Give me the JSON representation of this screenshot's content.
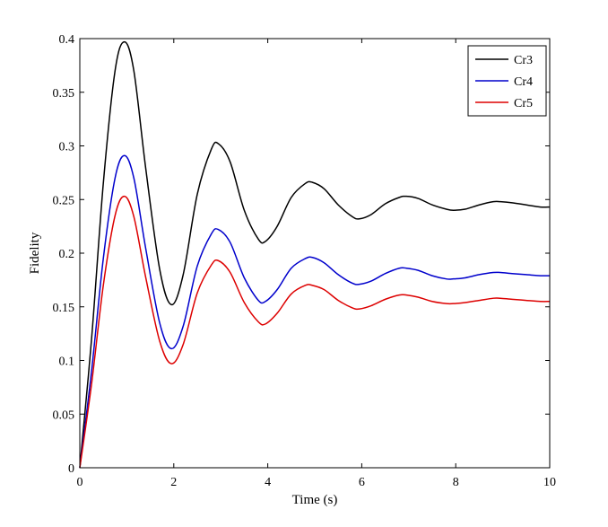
{
  "chart_data": {
    "type": "line",
    "title": "",
    "xlabel": "Time (s)",
    "ylabel": "Fidelity",
    "xlim": [
      0,
      10
    ],
    "ylim": [
      0,
      0.4
    ],
    "xticks": [
      0,
      2,
      4,
      6,
      8,
      10
    ],
    "xtick_labels": [
      "0",
      "2",
      "4",
      "6",
      "8",
      "10"
    ],
    "yticks": [
      0,
      0.05,
      0.1,
      0.15,
      0.2,
      0.25,
      0.3,
      0.35,
      0.4
    ],
    "ytick_labels": [
      "0",
      "0.05",
      "0.1",
      "0.15",
      "0.2",
      "0.25",
      "0.3",
      "0.35",
      "0.4"
    ],
    "grid": false,
    "legend_position": "top-right",
    "series": [
      {
        "name": "Cr3",
        "color": "#000000",
        "x": [
          0,
          0.25,
          0.5,
          0.75,
          0.95,
          1.15,
          1.4,
          1.7,
          1.95,
          2.2,
          2.5,
          2.8,
          2.95,
          3.2,
          3.5,
          3.8,
          3.95,
          4.2,
          4.5,
          4.8,
          4.95,
          5.2,
          5.5,
          5.8,
          5.95,
          6.2,
          6.5,
          6.8,
          6.95,
          7.2,
          7.5,
          7.8,
          7.95,
          8.2,
          8.5,
          8.8,
          8.95,
          9.2,
          9.5,
          9.8,
          10
        ],
        "y": [
          0,
          0.12,
          0.265,
          0.37,
          0.397,
          0.37,
          0.28,
          0.185,
          0.152,
          0.18,
          0.255,
          0.297,
          0.302,
          0.285,
          0.24,
          0.213,
          0.211,
          0.225,
          0.252,
          0.265,
          0.266,
          0.26,
          0.245,
          0.234,
          0.232,
          0.236,
          0.246,
          0.252,
          0.253,
          0.251,
          0.245,
          0.241,
          0.24,
          0.241,
          0.245,
          0.248,
          0.248,
          0.247,
          0.245,
          0.243,
          0.243
        ]
      },
      {
        "name": "Cr4",
        "color": "#0000cc",
        "x": [
          0,
          0.25,
          0.5,
          0.75,
          0.95,
          1.15,
          1.4,
          1.7,
          1.95,
          2.2,
          2.5,
          2.8,
          2.95,
          3.2,
          3.5,
          3.8,
          3.95,
          4.2,
          4.5,
          4.8,
          4.95,
          5.2,
          5.5,
          5.8,
          5.95,
          6.2,
          6.5,
          6.8,
          6.95,
          7.2,
          7.5,
          7.8,
          7.95,
          8.2,
          8.5,
          8.8,
          8.95,
          9.2,
          9.5,
          9.8,
          10
        ],
        "y": [
          0,
          0.09,
          0.195,
          0.27,
          0.291,
          0.27,
          0.205,
          0.135,
          0.111,
          0.132,
          0.188,
          0.218,
          0.222,
          0.21,
          0.177,
          0.156,
          0.155,
          0.166,
          0.186,
          0.195,
          0.196,
          0.191,
          0.18,
          0.172,
          0.171,
          0.174,
          0.181,
          0.186,
          0.186,
          0.184,
          0.179,
          0.176,
          0.176,
          0.177,
          0.18,
          0.182,
          0.182,
          0.181,
          0.18,
          0.179,
          0.179
        ]
      },
      {
        "name": "Cr5",
        "color": "#dd0000",
        "x": [
          0,
          0.25,
          0.5,
          0.75,
          0.95,
          1.15,
          1.4,
          1.7,
          1.95,
          2.2,
          2.5,
          2.8,
          2.95,
          3.2,
          3.5,
          3.8,
          3.95,
          4.2,
          4.5,
          4.8,
          4.95,
          5.2,
          5.5,
          5.8,
          5.95,
          6.2,
          6.5,
          6.8,
          6.95,
          7.2,
          7.5,
          7.8,
          7.95,
          8.2,
          8.5,
          8.8,
          8.95,
          9.2,
          9.5,
          9.8,
          10
        ],
        "y": [
          0,
          0.078,
          0.17,
          0.235,
          0.253,
          0.234,
          0.178,
          0.118,
          0.097,
          0.115,
          0.163,
          0.189,
          0.193,
          0.182,
          0.154,
          0.136,
          0.134,
          0.144,
          0.162,
          0.17,
          0.17,
          0.166,
          0.156,
          0.149,
          0.148,
          0.151,
          0.157,
          0.161,
          0.161,
          0.159,
          0.155,
          0.153,
          0.153,
          0.154,
          0.156,
          0.158,
          0.158,
          0.157,
          0.156,
          0.155,
          0.155
        ]
      }
    ]
  }
}
